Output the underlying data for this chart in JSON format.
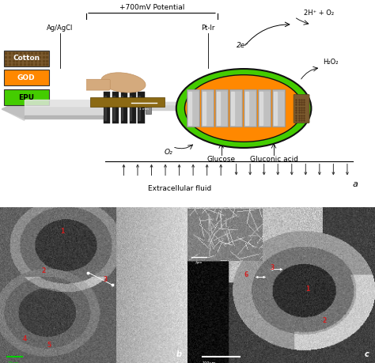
{
  "bg_color": "#ffffff",
  "panel_a": {
    "potential_label": "+700mV Potential",
    "ag_agcl_label": "Ag/AgCl",
    "pt_ir_label": "Pt-Ir",
    "reaction1": "2H⁺ + O₂",
    "reaction2": "H₂O₂",
    "reaction3": "2e⁻",
    "o2_label": "O₂",
    "glucose_label": "Glucose",
    "gluconic_label": "Gluconic acid",
    "fluid_label": "Extracellular fluid",
    "panel_letter": "a",
    "cotton_color": "#7b5a2e",
    "god_color": "#ff8800",
    "epu_color": "#44cc00",
    "cotton_label": "Cotton",
    "god_label": "GOD",
    "epu_label": "EPU"
  }
}
